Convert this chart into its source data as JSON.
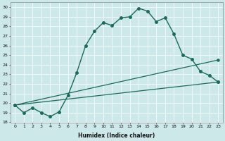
{
  "xlabel": "Humidex (Indice chaleur)",
  "ylabel": "",
  "bg_color": "#cce8e8",
  "line_color": "#1a6b5a",
  "grid_color": "#ffffff",
  "xlim": [
    -0.5,
    23.5
  ],
  "ylim": [
    18,
    30.5
  ],
  "yticks": [
    18,
    19,
    20,
    21,
    22,
    23,
    24,
    25,
    26,
    27,
    28,
    29,
    30
  ],
  "xticks": [
    0,
    1,
    2,
    3,
    4,
    5,
    6,
    7,
    8,
    9,
    10,
    11,
    12,
    13,
    14,
    15,
    16,
    17,
    18,
    19,
    20,
    21,
    22,
    23
  ],
  "curve1_x": [
    0,
    1,
    2,
    3,
    4,
    5,
    6,
    7,
    8,
    9,
    10,
    11,
    12,
    13,
    14,
    15,
    16,
    17,
    18,
    19,
    20,
    21,
    22,
    23
  ],
  "curve1_y": [
    19.8,
    19.0,
    19.5,
    19.0,
    18.6,
    19.1,
    20.8,
    23.2,
    26.0,
    27.5,
    28.4,
    28.1,
    28.9,
    29.0,
    29.9,
    29.6,
    28.5,
    28.9,
    27.2,
    25.0,
    24.6,
    23.3,
    22.9,
    22.2
  ],
  "curve2_x": [
    0,
    23
  ],
  "curve2_y": [
    19.8,
    22.2
  ],
  "curve3_x": [
    0,
    23
  ],
  "curve3_y": [
    19.8,
    24.5
  ]
}
